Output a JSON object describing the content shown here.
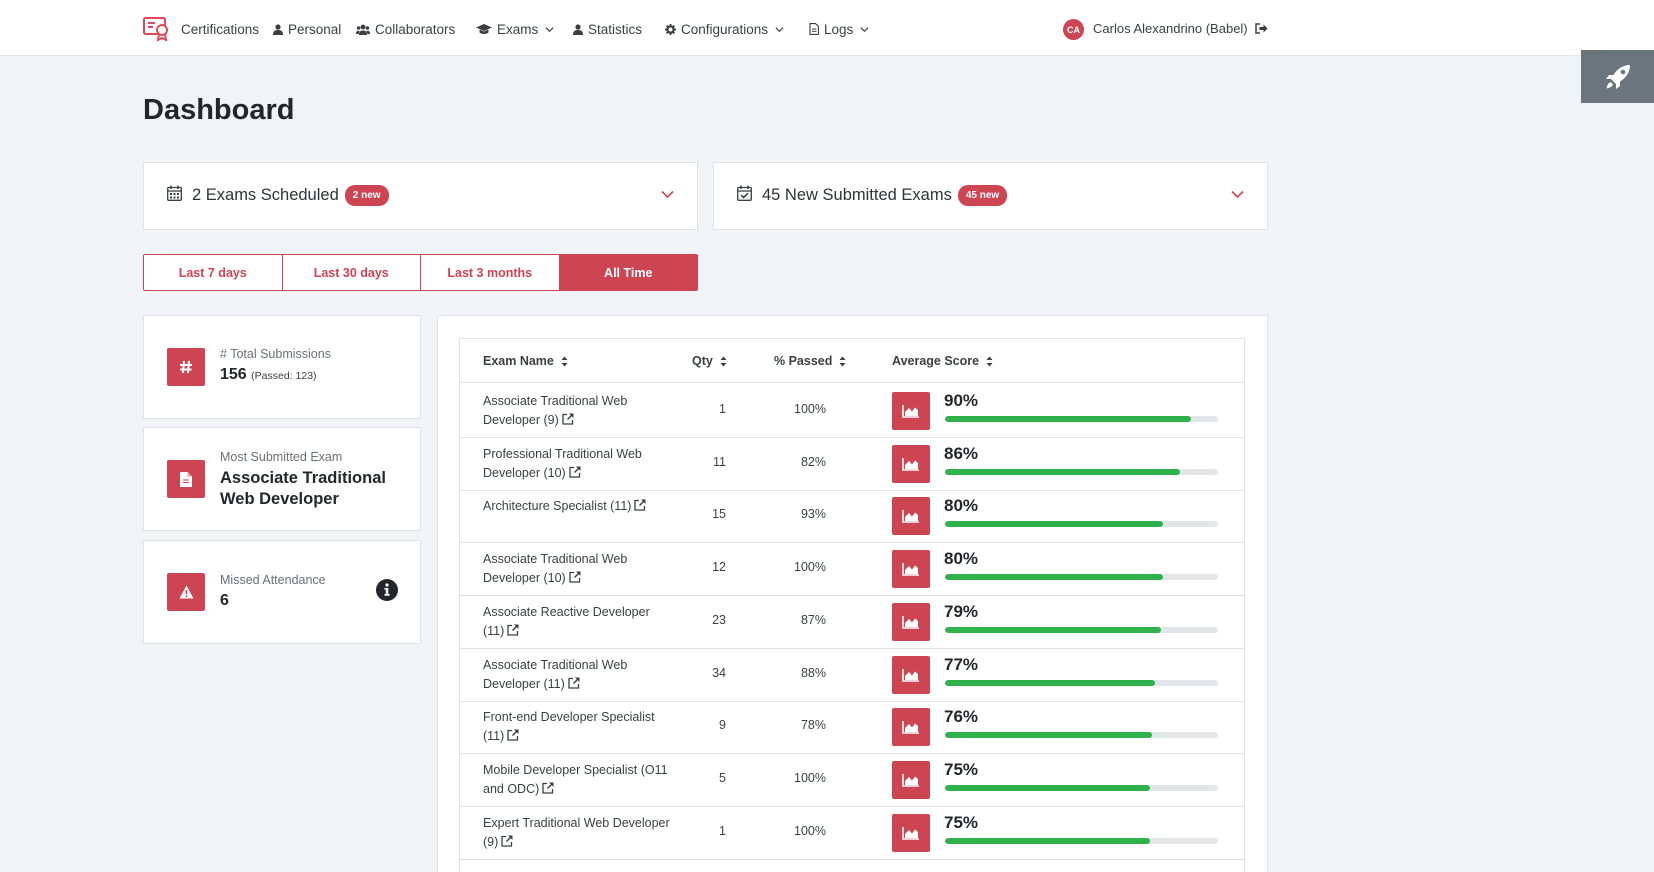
{
  "nav": {
    "items": [
      {
        "label": "Certifications",
        "icon": "certificate-icon"
      },
      {
        "label": "Personal",
        "icon": "user-icon"
      },
      {
        "label": "Collaborators",
        "icon": "users-icon"
      },
      {
        "label": "Exams",
        "icon": "graduation-cap-icon",
        "dropdown": true
      },
      {
        "label": "Statistics",
        "icon": "user-icon"
      },
      {
        "label": "Configurations",
        "icon": "gear-icon",
        "dropdown": true
      },
      {
        "label": "Logs",
        "icon": "file-icon",
        "dropdown": true
      }
    ],
    "user": {
      "initials": "CA",
      "name": "Carlos Alexandrino (Babel)"
    }
  },
  "page": {
    "title": "Dashboard"
  },
  "accordions": {
    "scheduled": {
      "title": "2 Exams Scheduled",
      "badge": "2 new"
    },
    "submitted": {
      "title": "45 New Submitted Exams",
      "badge": "45 new"
    }
  },
  "range": {
    "options": [
      "Last 7 days",
      "Last 30 days",
      "Last 3 months",
      "All Time"
    ],
    "active": "All Time"
  },
  "cards": {
    "total": {
      "label": "# Total Submissions",
      "value": "156",
      "sub": "(Passed: 123)"
    },
    "most": {
      "label": "Most Submitted Exam",
      "value": "Associate Traditional Web Developer"
    },
    "missed": {
      "label": "Missed Attendance",
      "value": "6"
    }
  },
  "table": {
    "headers": {
      "name": "Exam Name",
      "qty": "Qty",
      "passed": "% Passed",
      "score": "Average Score"
    },
    "rows": [
      {
        "name": "Associate Traditional Web Developer (9)",
        "qty": "1",
        "passed": "100%",
        "score": "90%",
        "score_value": 0.9
      },
      {
        "name": "Professional Traditional Web Developer (10)",
        "qty": "11",
        "passed": "82%",
        "score": "86%",
        "score_value": 0.86
      },
      {
        "name": "Architecture Specialist (11)",
        "qty": "15",
        "passed": "93%",
        "score": "80%",
        "score_value": 0.8
      },
      {
        "name": "Associate Traditional Web Developer (10)",
        "qty": "12",
        "passed": "100%",
        "score": "80%",
        "score_value": 0.8
      },
      {
        "name": "Associate Reactive Developer (11)",
        "qty": "23",
        "passed": "87%",
        "score": "79%",
        "score_value": 0.79
      },
      {
        "name": "Associate Traditional Web Developer (11)",
        "qty": "34",
        "passed": "88%",
        "score": "77%",
        "score_value": 0.77
      },
      {
        "name": "Front-end Developer Specialist (11)",
        "qty": "9",
        "passed": "78%",
        "score": "76%",
        "score_value": 0.76
      },
      {
        "name": "Mobile Developer Specialist (O11 and ODC)",
        "qty": "5",
        "passed": "100%",
        "score": "75%",
        "score_value": 0.75
      },
      {
        "name": "Expert Traditional Web Developer (9)",
        "qty": "1",
        "passed": "100%",
        "score": "75%",
        "score_value": 0.75
      }
    ]
  },
  "colors": {
    "accent": "#cd4453",
    "progress": "#2fb14c",
    "background": "#f1f4f6"
  }
}
